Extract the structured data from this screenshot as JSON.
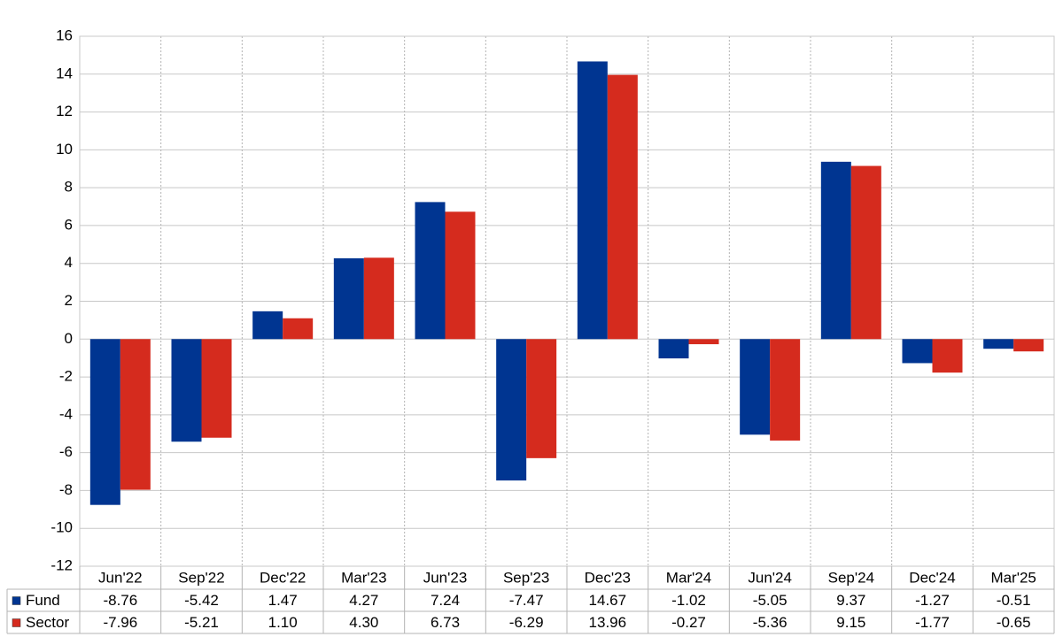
{
  "chart_data": {
    "type": "bar",
    "categories": [
      "Jun'22",
      "Sep'22",
      "Dec'22",
      "Mar'23",
      "Jun'23",
      "Sep'23",
      "Dec'23",
      "Mar'24",
      "Jun'24",
      "Sep'24",
      "Dec'24",
      "Mar'25"
    ],
    "series": [
      {
        "name": "Fund",
        "color": "#003591",
        "values": [
          -8.76,
          -5.42,
          1.47,
          4.27,
          7.24,
          -7.47,
          14.67,
          -1.02,
          -5.05,
          9.37,
          -1.27,
          -0.51
        ],
        "value_labels": [
          "-8.76",
          "-5.42",
          "1.47",
          "4.27",
          "7.24",
          "-7.47",
          "14.67",
          "-1.02",
          "-5.05",
          "9.37",
          "-1.27",
          "-0.51"
        ]
      },
      {
        "name": "Sector",
        "color": "#d52b1e",
        "values": [
          -7.96,
          -5.21,
          1.1,
          4.3,
          6.73,
          -6.29,
          13.96,
          -0.27,
          -5.36,
          9.15,
          -1.77,
          -0.65
        ],
        "value_labels": [
          "-7.96",
          "-5.21",
          "1.10",
          "4.30",
          "6.73",
          "-6.29",
          "13.96",
          "-0.27",
          "-5.36",
          "9.15",
          "-1.77",
          "-0.65"
        ]
      }
    ],
    "ylim": [
      -12,
      16
    ],
    "yticks": [
      -12,
      -10,
      -8,
      -6,
      -4,
      -2,
      0,
      2,
      4,
      6,
      8,
      10,
      12,
      14,
      16
    ],
    "grid": true
  }
}
